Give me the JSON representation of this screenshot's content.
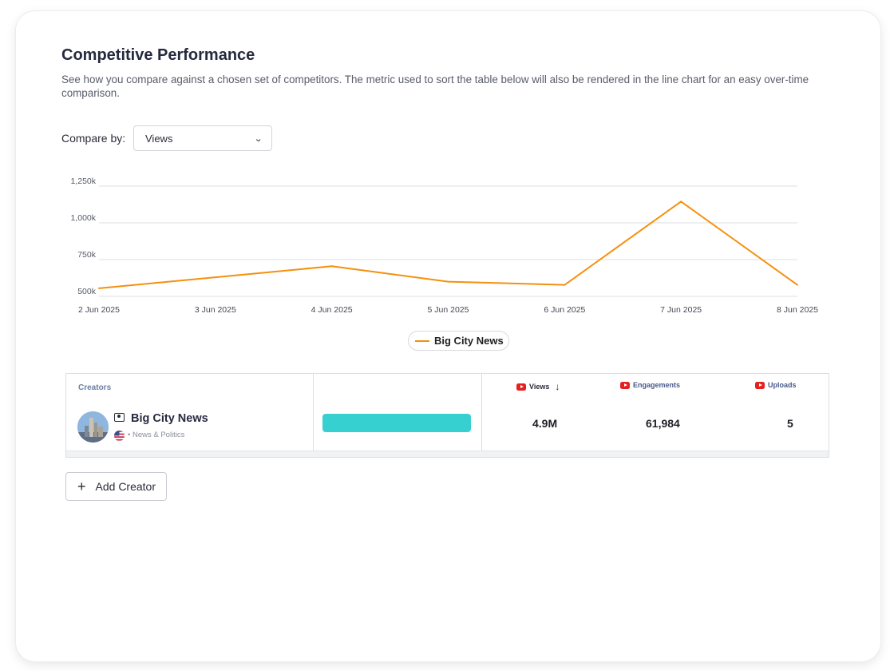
{
  "header": {
    "title": "Competitive Performance",
    "description": "See how you compare against a chosen set of competitors. The metric used to sort the table below will also be rendered in the line chart for an easy over-time comparison."
  },
  "compare": {
    "label": "Compare by:",
    "selected": "Views"
  },
  "chart_data": {
    "type": "line",
    "x": [
      "2 Jun 2025",
      "3 Jun 2025",
      "4 Jun 2025",
      "5 Jun 2025",
      "6 Jun 2025",
      "7 Jun 2025",
      "8 Jun 2025"
    ],
    "series": [
      {
        "name": "Big City News",
        "color": "#f5900d",
        "values": [
          555000,
          630000,
          705000,
          600000,
          578000,
          1145000,
          578000
        ]
      }
    ],
    "y_ticks": [
      500000,
      750000,
      1000000,
      1250000
    ],
    "y_tick_labels": [
      "500k",
      "750k",
      "1,000k",
      "1,250k"
    ],
    "ylim": [
      500000,
      1250000
    ],
    "grid": true,
    "legend": "bottom-center",
    "title": "",
    "xlabel": "",
    "ylabel": ""
  },
  "table": {
    "creators_header": "Creators",
    "columns": [
      {
        "label": "Views",
        "sorted": "desc",
        "color": "#2b2b3a"
      },
      {
        "label": "Engagements",
        "color": "#4a5a8a"
      },
      {
        "label": "Uploads",
        "color": "#4a5a8a"
      }
    ],
    "sort_icon": "arrow-down-icon",
    "platform_icon": "youtube-icon",
    "rows": [
      {
        "name": "Big City News",
        "category": "News & Politics",
        "country_icon": "us-flag-icon",
        "bar_fraction": 1.0,
        "bar_color": "#37d0d0",
        "views": "4.9M",
        "engagements": "61,984",
        "uploads": "5"
      }
    ]
  },
  "actions": {
    "add_creator_label": "Add Creator",
    "add_icon": "plus-icon"
  }
}
